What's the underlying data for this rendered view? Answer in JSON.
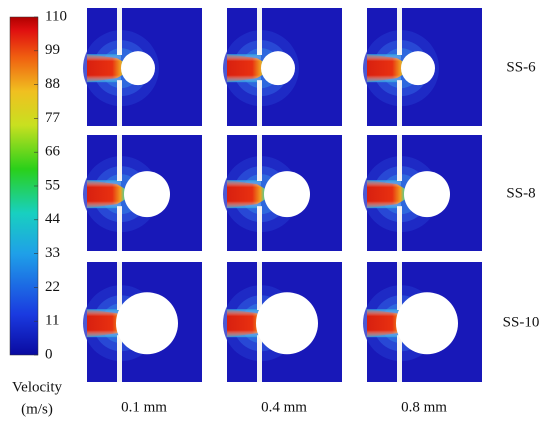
{
  "colorbar": {
    "title": "Velocity",
    "unit": "(m/s)",
    "ticks": [
      0,
      11,
      22,
      33,
      44,
      55,
      66,
      77,
      88,
      99,
      110
    ]
  },
  "columns": [
    "0.1 mm",
    "0.4 mm",
    "0.8 mm"
  ],
  "rows": [
    "SS-6",
    "SS-8",
    "SS-10"
  ]
}
